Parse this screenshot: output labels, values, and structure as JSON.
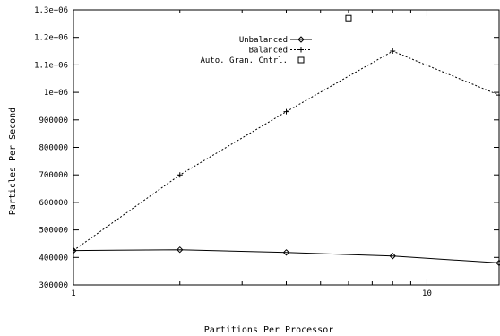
{
  "chart_data": {
    "type": "line",
    "xscale": "log",
    "xlabel": "Partitions Per Processor",
    "ylabel": "Particles Per Second",
    "xlim": [
      1,
      16
    ],
    "ylim": [
      300000,
      1300000
    ],
    "x_ticks": [
      {
        "value": 1,
        "label": "1"
      },
      {
        "value": 10,
        "label": "10"
      }
    ],
    "y_ticks": [
      {
        "value": 300000,
        "label": "300000"
      },
      {
        "value": 400000,
        "label": "400000"
      },
      {
        "value": 500000,
        "label": "500000"
      },
      {
        "value": 600000,
        "label": "600000"
      },
      {
        "value": 700000,
        "label": "700000"
      },
      {
        "value": 800000,
        "label": "800000"
      },
      {
        "value": 900000,
        "label": "900000"
      },
      {
        "value": 1000000,
        "label": "1e+06"
      },
      {
        "value": 1100000,
        "label": "1.1e+06"
      },
      {
        "value": 1200000,
        "label": "1.2e+06"
      },
      {
        "value": 1300000,
        "label": "1.3e+06"
      }
    ],
    "legend_position": "top-center",
    "grid": false,
    "series": [
      {
        "name": "Unbalanced",
        "marker": "diamond",
        "line": "solid",
        "points": [
          [
            1,
            425000
          ],
          [
            2,
            428000
          ],
          [
            4,
            418000
          ],
          [
            8,
            405000
          ],
          [
            16,
            380000
          ]
        ]
      },
      {
        "name": "Balanced",
        "marker": "plus",
        "line": "dotted",
        "points": [
          [
            1,
            425000
          ],
          [
            2,
            700000
          ],
          [
            4,
            930000
          ],
          [
            8,
            1150000
          ],
          [
            16,
            990000
          ]
        ]
      },
      {
        "name": "Auto. Gran. Cntrl.",
        "marker": "square",
        "line": "none",
        "points": [
          [
            6,
            1270000
          ]
        ]
      }
    ]
  }
}
